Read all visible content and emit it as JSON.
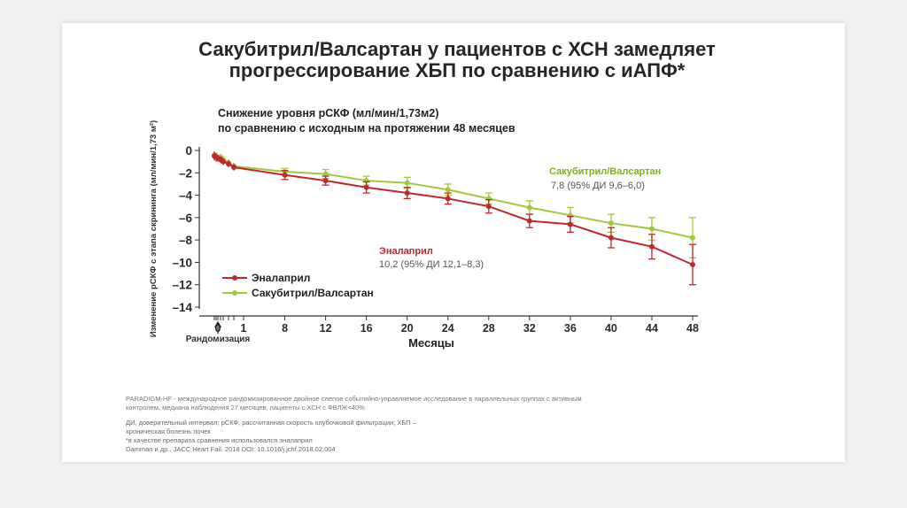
{
  "slide": {
    "title_line1": "Сакубитрил/Валсартан у пациентов с ХСН замедляет",
    "title_line2": "прогрессирование ХБП по сравнению с иАПФ*",
    "subtitle_line1": "Снижение уровня рСКФ (мл/мин/1,73м2)",
    "subtitle_line2": "по сравнению с исходным на протяжении 48 месяцев",
    "footnotes": [
      "PARADIGM-HF - международное рандомизированное двойное слепое событийно-управляемое исследование в параллельных группах с активным",
      "контролем, медиана наблюдения 27 месяцев,  пациенты с ХСН с ФВЛЖ<40%",
      "ДИ, доверительный интервал; рСКФ, рассчитанная скорость клубочковой фильтрации; ХБП –",
      "хроническая болезнь почек",
      "*в качестве препарата сравнения использовался эналаприл",
      "Damman и др., JACC Heart Fail. 2018 DOI: 10.1016/j.jchf.2018.02.004"
    ]
  },
  "chart_data": {
    "type": "line",
    "title": "Снижение уровня рСКФ (мл/мин/1,73м2) по сравнению с исходным на протяжении 48 месяцев",
    "xlabel": "Месяцы",
    "ylabel": "Изменение рСКФ с этапа скрининга (мл/мин/1,73 м²)",
    "x_ticks": [
      "0",
      "1",
      "8",
      "12",
      "16",
      "20",
      "24",
      "28",
      "32",
      "36",
      "40",
      "44",
      "48"
    ],
    "x_tick_values": [
      0,
      1,
      8,
      12,
      16,
      20,
      24,
      28,
      32,
      36,
      40,
      44,
      48
    ],
    "y_ticks": [
      "0",
      "–2",
      "–4",
      "–6",
      "–8",
      "–10",
      "–12",
      "–14"
    ],
    "y_tick_values": [
      0,
      -2,
      -4,
      -6,
      -8,
      -10,
      -12,
      -14
    ],
    "ylim": [
      -14,
      0
    ],
    "randomization_label": "Рандомизация",
    "legend": {
      "position": "bottom-left"
    },
    "series": [
      {
        "name": "Эналаприл",
        "color": "#c0282d",
        "annotation_name": "Эналаприл",
        "annotation_value": "10,2 (95% ДИ 12,1–8,3)",
        "x": [
          -1,
          -0.5,
          0,
          0.5,
          1,
          2,
          3,
          8,
          12,
          16,
          20,
          24,
          28,
          32,
          36,
          40,
          44,
          48
        ],
        "y": [
          -0.5,
          -0.6,
          -0.7,
          -0.8,
          -1.0,
          -1.2,
          -1.5,
          -2.2,
          -2.7,
          -3.3,
          -3.8,
          -4.3,
          -5.0,
          -6.3,
          -6.6,
          -7.8,
          -8.6,
          -10.2
        ],
        "err": [
          0.4,
          0.4,
          0.3,
          0.3,
          0.3,
          0.3,
          0.3,
          0.4,
          0.4,
          0.5,
          0.5,
          0.5,
          0.6,
          0.6,
          0.7,
          0.9,
          1.1,
          1.8
        ]
      },
      {
        "name": "Сакубитрил/Валсартан",
        "color": "#a2c93a",
        "annotation_name": "Сакубитрил/Валсартан",
        "annotation_value": "7,8 (95% ДИ 9,6–6,0)",
        "x": [
          -1,
          -0.5,
          0,
          0.5,
          1,
          2,
          3,
          8,
          12,
          16,
          20,
          24,
          28,
          32,
          36,
          40,
          44,
          48
        ],
        "y": [
          -0.4,
          -0.5,
          -0.6,
          -0.6,
          -0.8,
          -1.1,
          -1.4,
          -1.9,
          -2.1,
          -2.7,
          -2.9,
          -3.5,
          -4.3,
          -5.1,
          -5.8,
          -6.5,
          -7.0,
          -7.8
        ],
        "err": [
          0.3,
          0.3,
          0.3,
          0.3,
          0.3,
          0.3,
          0.3,
          0.3,
          0.4,
          0.4,
          0.5,
          0.5,
          0.5,
          0.6,
          0.7,
          0.8,
          1.0,
          1.8
        ]
      }
    ]
  }
}
